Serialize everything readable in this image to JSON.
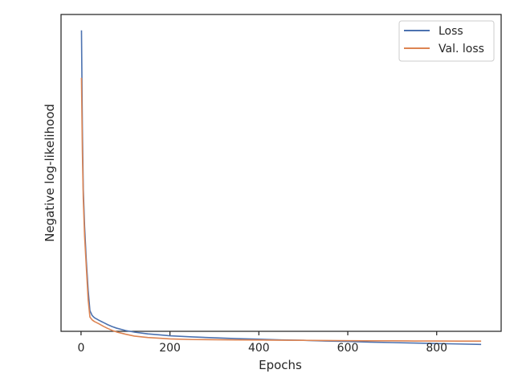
{
  "chart_data": {
    "type": "line",
    "xlabel": "Epochs",
    "ylabel": "Negative log-likelihood",
    "xlim": [
      -45,
      945
    ],
    "ylim": [
      0,
      100
    ],
    "x_ticks": [
      0,
      200,
      400,
      600,
      800
    ],
    "x_tick_labels": [
      "0",
      "200",
      "400",
      "600",
      "800"
    ],
    "y_tick_labels_shown": false,
    "grid": false,
    "legend": {
      "position": "top-right"
    },
    "series": [
      {
        "name": "Loss",
        "color": "#4c72b0",
        "x": [
          1,
          3,
          5,
          8,
          12,
          16,
          20,
          25,
          30,
          40,
          50,
          60,
          70,
          80,
          100,
          120,
          150,
          180,
          200,
          250,
          300,
          350,
          400,
          450,
          500,
          550,
          600,
          650,
          700,
          750,
          800,
          850,
          900
        ],
        "y": [
          95,
          64,
          45,
          33,
          22,
          13,
          6.5,
          5,
          4.3,
          3.5,
          2.8,
          2.1,
          1.5,
          1.0,
          0.25,
          -0.25,
          -0.8,
          -1.15,
          -1.4,
          -1.75,
          -2.05,
          -2.3,
          -2.5,
          -2.7,
          -2.85,
          -3.05,
          -3.2,
          -3.4,
          -3.55,
          -3.7,
          -3.85,
          -4.0,
          -4.15
        ]
      },
      {
        "name": "Val. loss",
        "color": "#dd8452",
        "x": [
          1,
          3,
          5,
          8,
          12,
          16,
          20,
          25,
          30,
          40,
          50,
          60,
          70,
          80,
          100,
          120,
          150,
          180,
          200,
          250,
          300,
          350,
          400,
          450,
          500,
          550,
          600,
          650,
          700,
          750,
          800,
          850,
          900
        ],
        "y": [
          80,
          57,
          42,
          30,
          20,
          10,
          4.5,
          3.6,
          3.1,
          2.4,
          1.6,
          0.9,
          0.3,
          -0.2,
          -0.9,
          -1.5,
          -1.95,
          -2.2,
          -2.4,
          -2.6,
          -2.65,
          -2.7,
          -2.75,
          -2.8,
          -2.85,
          -2.9,
          -2.95,
          -3.0,
          -3.0,
          -3.05,
          -3.05,
          -3.1,
          -3.1
        ]
      }
    ]
  }
}
